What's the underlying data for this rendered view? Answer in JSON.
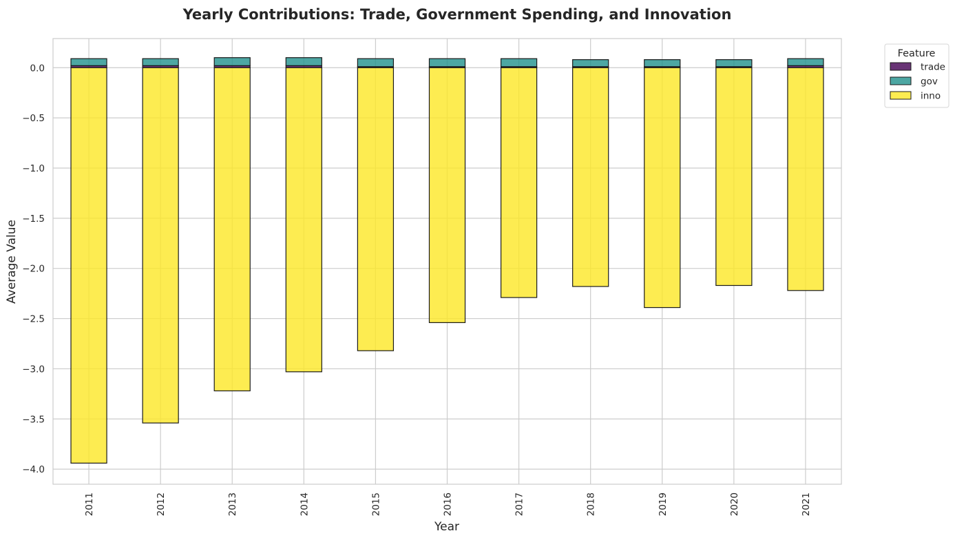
{
  "chart_data": {
    "type": "bar",
    "stacked": true,
    "title": "Yearly Contributions: Trade, Government Spending, and Innovation",
    "xlabel": "Year",
    "ylabel": "Average Value",
    "categories": [
      "2011",
      "2012",
      "2013",
      "2014",
      "2015",
      "2016",
      "2017",
      "2018",
      "2019",
      "2020",
      "2021"
    ],
    "series": [
      {
        "name": "trade",
        "color": "#440154",
        "values": [
          0.02,
          0.02,
          0.02,
          0.02,
          0.01,
          0.01,
          0.01,
          0.01,
          0.01,
          0.01,
          0.02
        ]
      },
      {
        "name": "gov",
        "color": "#21918c",
        "values": [
          0.07,
          0.07,
          0.08,
          0.08,
          0.08,
          0.08,
          0.08,
          0.07,
          0.07,
          0.07,
          0.07
        ]
      },
      {
        "name": "inno",
        "color": "#fde725",
        "values": [
          -3.94,
          -3.54,
          -3.22,
          -3.03,
          -2.82,
          -2.54,
          -2.29,
          -2.18,
          -2.39,
          -2.17,
          -2.22
        ]
      }
    ],
    "ylim": [
      -4.15,
      0.29
    ],
    "yticks": [
      0.0,
      -0.5,
      -1.0,
      -1.5,
      -2.0,
      -2.5,
      -3.0,
      -3.5,
      -4.0
    ],
    "ytick_labels": [
      "0.0",
      "−0.5",
      "−1.0",
      "−1.5",
      "−2.0",
      "−2.5",
      "−3.0",
      "−3.5",
      "−4.0"
    ],
    "grid": true,
    "legend": {
      "title": "Feature",
      "placement": "outside-top-right"
    }
  }
}
